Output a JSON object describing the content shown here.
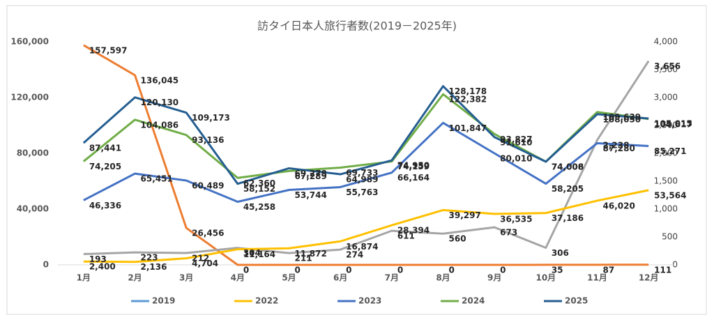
{
  "chart_data": {
    "type": "line",
    "title": "訪タイ日本人旅行者数(2019－2025年)",
    "categories": [
      "1月",
      "2月",
      "3月",
      "4月",
      "5月",
      "6月",
      "7月",
      "8月",
      "9月",
      "10月",
      "11月",
      "12月"
    ],
    "ylim": [
      0,
      160000
    ],
    "yticks": [
      0,
      {
        "value": 40000,
        "label": "40,000"
      },
      {
        "value": 80000,
        "label": "80,000"
      },
      {
        "value": 120000,
        "label": "120,000"
      },
      {
        "value": 160000,
        "label": "160,000"
      }
    ],
    "y2lim": [
      0,
      4000
    ],
    "y2ticks": [
      0,
      500,
      {
        "value": 1000,
        "label": "1,000"
      },
      {
        "value": 1500,
        "label": "1,500"
      },
      {
        "value": 2000,
        "label": "2,000"
      },
      {
        "value": 2500,
        "label": "2,500"
      },
      {
        "value": 3000,
        "label": "3,000"
      },
      {
        "value": 3500,
        "label": "3,500"
      },
      {
        "value": 4000,
        "label": "4,000"
      }
    ],
    "legend": "bottom",
    "series": [
      {
        "name": "2019",
        "color": "#5b9bd5",
        "values": [
          null,
          null,
          null,
          null,
          null,
          null,
          null,
          null,
          null,
          null,
          null,
          null
        ]
      },
      {
        "color": "#ed7d31",
        "values": [
          157597,
          136045,
          26456,
          0,
          0,
          0,
          0,
          0,
          0,
          35,
          87,
          111
        ],
        "value_labels": [
          "157,597",
          "136,045",
          "26,456",
          "0",
          "0",
          "0",
          "0",
          "0",
          "0",
          "35",
          "87",
          "111"
        ]
      },
      {
        "color": "#a5a5a5",
        "axis": "y2",
        "values": [
          193,
          223,
          212,
          304,
          211,
          274,
          611,
          560,
          673,
          306,
          2238,
          3656
        ],
        "value_labels": [
          "193",
          "223",
          "212",
          "304",
          "211",
          "274",
          "611",
          "560",
          "673",
          "306",
          "2,238",
          "3,656"
        ]
      },
      {
        "name": "2022",
        "color": "#ffc000",
        "values": [
          2400,
          2136,
          4704,
          11164,
          11872,
          16874,
          28394,
          39297,
          36535,
          37186,
          46020,
          53564
        ],
        "value_labels": [
          "2,400",
          "2,136",
          "4,704",
          "11,164",
          "11,872",
          "16,874",
          "28,394",
          "39,297",
          "36,535",
          "37,186",
          "46,020",
          "53,564"
        ]
      },
      {
        "name": "2023",
        "color": "#4472c4",
        "values": [
          46336,
          65451,
          60489,
          45258,
          53744,
          55763,
          66164,
          101847,
          80010,
          58205,
          87280,
          85271
        ],
        "value_labels": [
          "46,336",
          "65,451",
          "60,489",
          "45,258",
          "53,744",
          "55,763",
          "66,164",
          "101,847",
          "80,010",
          "58,205",
          "87,280",
          "85,271"
        ]
      },
      {
        "name": "2024",
        "color": "#70ad47",
        "values": [
          74205,
          104086,
          93136,
          62360,
          67289,
          69733,
          74159,
          122382,
          93827,
          74006,
          109639,
          104617
        ],
        "value_labels": [
          "74,205",
          "104,086",
          "93,136",
          "62,360",
          "67,289",
          "69,733",
          "74,159",
          "122,382",
          "93,827",
          "74,006",
          "109,639",
          "104,617"
        ]
      },
      {
        "name": "2025",
        "color": "#255e91",
        "values": [
          87441,
          120130,
          109173,
          58152,
          69278,
          64989,
          74950,
          128178,
          91610,
          74008,
          108050,
          105015
        ],
        "value_labels": [
          "87,441",
          "120,130",
          "109,173",
          "58,152",
          "69,278",
          "64,989",
          "74,950",
          "128,178",
          "91,610",
          "74,008",
          "108,050",
          "105,015"
        ]
      }
    ]
  }
}
